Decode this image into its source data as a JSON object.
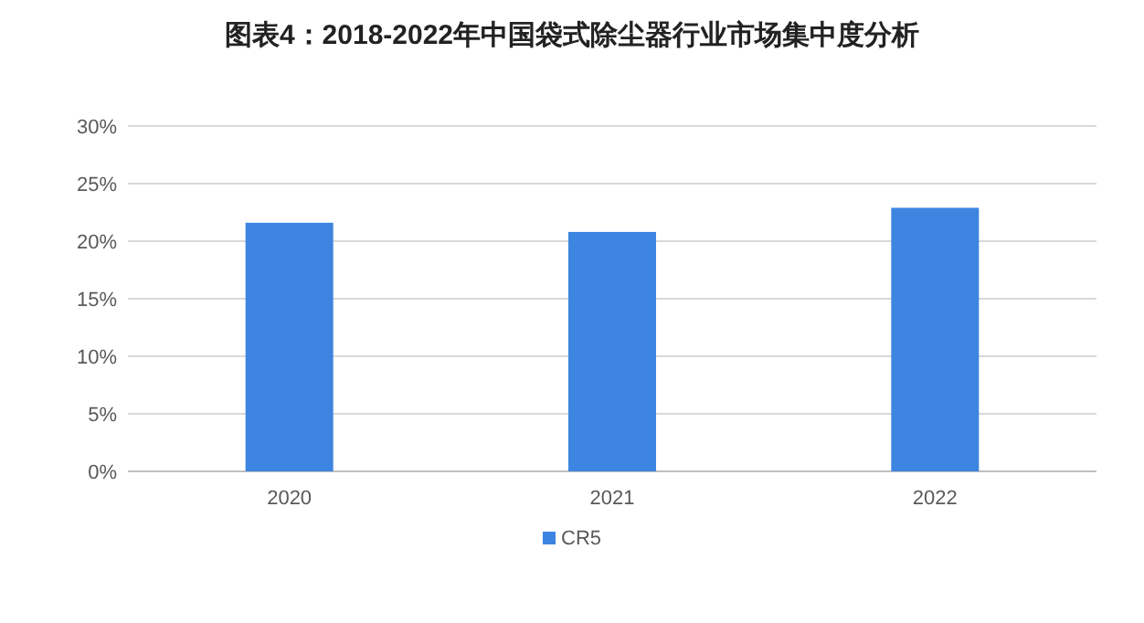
{
  "chart_data": {
    "type": "bar",
    "title": "图表4：2018-2022年中国袋式除尘器行业市场集中度分析",
    "categories": [
      "2020",
      "2021",
      "2022"
    ],
    "series": [
      {
        "name": "CR5",
        "color": "#3d85e0",
        "values": [
          21.6,
          20.8,
          22.9
        ]
      }
    ],
    "ylim": [
      0,
      30
    ],
    "yticks": [
      {
        "value": 0,
        "label": "0%"
      },
      {
        "value": 5,
        "label": "5%"
      },
      {
        "value": 10,
        "label": "10%"
      },
      {
        "value": 15,
        "label": "15%"
      },
      {
        "value": 20,
        "label": "20%"
      },
      {
        "value": 25,
        "label": "25%"
      },
      {
        "value": 30,
        "label": "30%"
      }
    ],
    "grid": "y",
    "legend": "bottom"
  }
}
